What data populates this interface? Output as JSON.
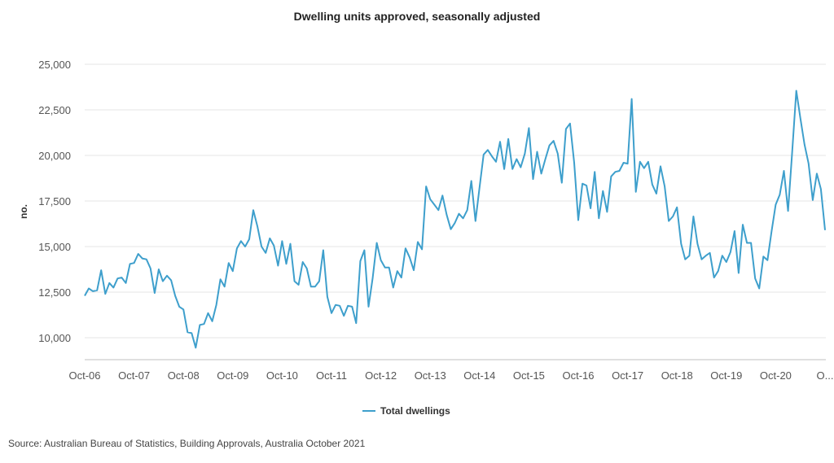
{
  "chart_data": {
    "type": "line",
    "title": "Dwelling units approved, seasonally adjusted",
    "xlabel": "",
    "ylabel": "no.",
    "ylim": [
      8600,
      25000
    ],
    "yticks": [
      10000,
      12500,
      15000,
      17500,
      20000,
      22500,
      25000
    ],
    "ytick_labels": [
      "10,000",
      "12,500",
      "15,000",
      "17,500",
      "20,000",
      "22,500",
      "25,000"
    ],
    "xtick_labels": [
      "Oct-06",
      "Oct-07",
      "Oct-08",
      "Oct-09",
      "Oct-10",
      "Oct-11",
      "Oct-12",
      "Oct-13",
      "Oct-14",
      "Oct-15",
      "Oct-16",
      "Oct-17",
      "Oct-18",
      "Oct-19",
      "Oct-20",
      "O..."
    ],
    "x_start": "Oct-06",
    "x_end": "Oct-21",
    "x_frequency": "monthly",
    "grid": true,
    "legend_position": "bottom",
    "line_color": "#3e9fcc",
    "series": [
      {
        "name": "Total dwellings",
        "values": [
          12300,
          12700,
          12550,
          12600,
          13700,
          12400,
          13000,
          12750,
          13250,
          13300,
          13000,
          14050,
          14100,
          14600,
          14350,
          14300,
          13800,
          12450,
          13750,
          13100,
          13400,
          13150,
          12300,
          11700,
          11550,
          10300,
          10250,
          9450,
          10700,
          10750,
          11350,
          10900,
          11800,
          13200,
          12800,
          14100,
          13650,
          14900,
          15300,
          15000,
          15400,
          17000,
          16100,
          15000,
          14650,
          15450,
          15050,
          13950,
          15300,
          14050,
          15150,
          13100,
          12900,
          14150,
          13800,
          12800,
          12800,
          13100,
          14800,
          12250,
          11350,
          11800,
          11750,
          11200,
          11750,
          11700,
          10800,
          14200,
          14800,
          11700,
          13250,
          15200,
          14250,
          13850,
          13850,
          12750,
          13650,
          13300,
          14900,
          14400,
          13700,
          15250,
          14850,
          18300,
          17600,
          17300,
          17000,
          17800,
          16750,
          15950,
          16300,
          16800,
          16550,
          17000,
          18600,
          16400,
          18250,
          20050,
          20300,
          19950,
          19650,
          20750,
          19250,
          20900,
          19250,
          19800,
          19350,
          20100,
          21500,
          18700,
          20200,
          19000,
          19800,
          20550,
          20800,
          20100,
          18500,
          21450,
          21750,
          19600,
          16450,
          18450,
          18350,
          17100,
          19100,
          16550,
          18050,
          16900,
          18850,
          19100,
          19150,
          19600,
          19550,
          23100,
          18000,
          19650,
          19300,
          19650,
          18400,
          17900,
          19400,
          18300,
          16400,
          16650,
          17150,
          15150,
          14300,
          14500,
          16650,
          15150,
          14300,
          14500,
          14650,
          13300,
          13650,
          14500,
          14150,
          14700,
          15850,
          13550,
          16200,
          15200,
          15200,
          13250,
          12700,
          14450,
          14250,
          15850,
          17300,
          17850,
          19150,
          16950,
          20150,
          23550,
          22050,
          20600,
          19550,
          17550,
          19000,
          18150,
          15900
        ]
      }
    ],
    "source": "Source: Australian Bureau of Statistics, Building Approvals, Australia October 2021"
  }
}
